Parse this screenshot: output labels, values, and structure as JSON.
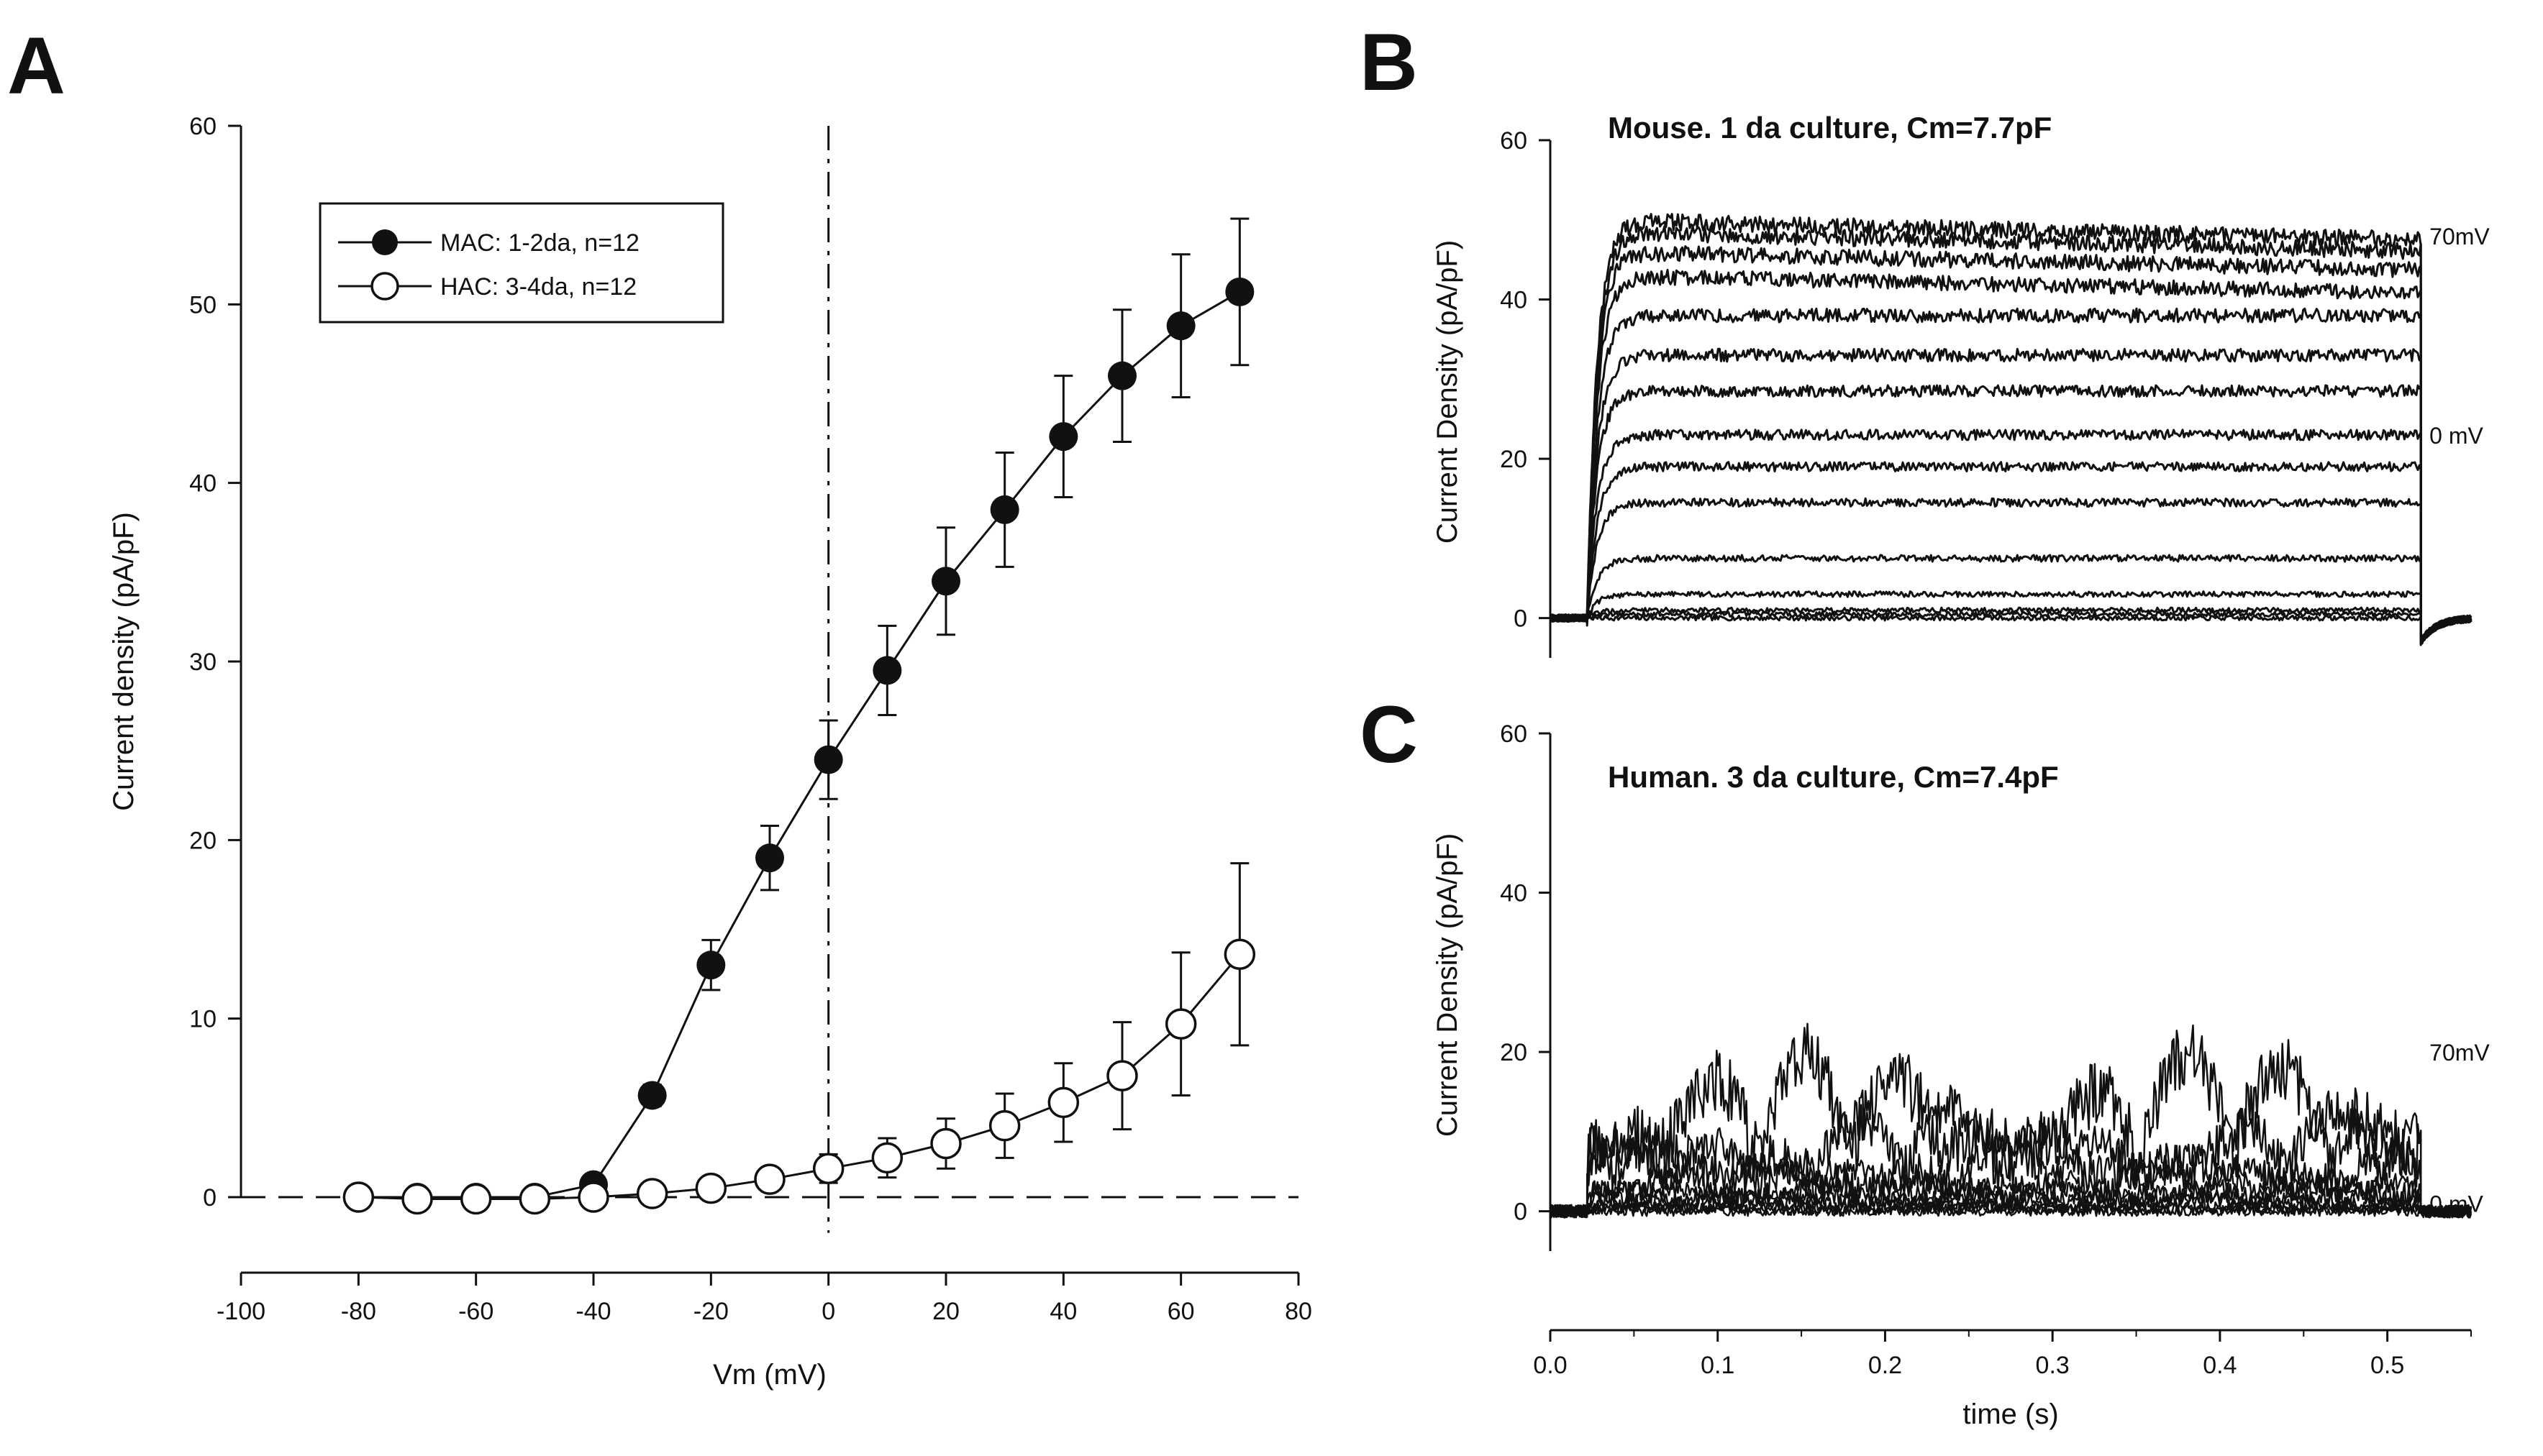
{
  "figure": {
    "panel_letters": [
      "A",
      "B",
      "C"
    ]
  },
  "chart_data": [
    {
      "panel": "A",
      "type": "line",
      "title": "",
      "xlabel": "Vm (mV)",
      "ylabel": "Current density (pA/pF)",
      "xlim": [
        -100,
        80
      ],
      "ylim": [
        0,
        60
      ],
      "xticks": [
        -100,
        -80,
        -60,
        -40,
        -20,
        0,
        20,
        40,
        60,
        80
      ],
      "yticks": [
        0,
        10,
        20,
        30,
        40,
        50,
        60
      ],
      "series": [
        {
          "name": "MAC: 1-2da, n=12",
          "marker": "filled-circle",
          "x": [
            -80,
            -70,
            -60,
            -50,
            -40,
            -30,
            -20,
            -10,
            0,
            10,
            20,
            30,
            40,
            50,
            60,
            70
          ],
          "y": [
            0,
            0,
            0,
            0,
            0.7,
            5.7,
            13.0,
            19.0,
            24.5,
            29.5,
            34.5,
            38.5,
            42.6,
            46.0,
            48.8,
            50.7
          ],
          "err": [
            0,
            0,
            0,
            0,
            0.3,
            0.6,
            1.4,
            1.8,
            2.2,
            2.5,
            3.0,
            3.2,
            3.4,
            3.7,
            4.0,
            4.1
          ]
        },
        {
          "name": "HAC: 3-4da, n=12",
          "marker": "open-circle",
          "x": [
            -80,
            -70,
            -60,
            -50,
            -40,
            -30,
            -20,
            -10,
            0,
            10,
            20,
            30,
            40,
            50,
            60,
            70
          ],
          "y": [
            0,
            -0.1,
            -0.1,
            -0.1,
            0,
            0.2,
            0.5,
            1.0,
            1.6,
            2.2,
            3.0,
            4.0,
            5.3,
            6.8,
            9.7,
            13.6
          ],
          "err": [
            0,
            0,
            0,
            0,
            0,
            0.2,
            0.3,
            0.5,
            0.8,
            1.1,
            1.4,
            1.8,
            2.2,
            3.0,
            4.0,
            5.1
          ]
        }
      ],
      "reference_lines": {
        "horizontal": 0,
        "vertical": 0
      }
    },
    {
      "panel": "B",
      "type": "line",
      "title": "Mouse. 1 da culture, Cm=7.7pF",
      "xlabel": "",
      "ylabel": "Current Density (pA/pF)",
      "xlim": [
        0,
        0.55
      ],
      "ylim": [
        -5,
        60
      ],
      "yticks": [
        0,
        20,
        40,
        60
      ],
      "step_onset_s": 0.022,
      "step_offset_s": 0.52,
      "trace_levels": [
        0,
        0.5,
        1,
        3,
        7.5,
        14.5,
        19,
        23,
        28.5,
        33,
        38,
        43,
        46,
        48.5,
        50
      ],
      "trace_labels": [
        {
          "text": "70mV",
          "level": 48
        },
        {
          "text": "0 mV",
          "level": 23
        }
      ]
    },
    {
      "panel": "C",
      "type": "line",
      "title": "Human. 3 da culture, Cm=7.4pF",
      "xlabel": "time (s)",
      "ylabel": "Current Density (pA/pF)",
      "xlim": [
        0,
        0.55
      ],
      "ylim": [
        -5,
        60
      ],
      "xticks": [
        0.0,
        0.1,
        0.2,
        0.3,
        0.4,
        0.5
      ],
      "xtick_labels": [
        "0.0",
        "0.1",
        "0.2",
        "0.3",
        "0.4",
        "0.5"
      ],
      "yticks": [
        0,
        20,
        40,
        60
      ],
      "step_onset_s": 0.022,
      "step_offset_s": 0.52,
      "trace_levels": [
        0,
        0.5,
        1,
        2,
        3,
        4,
        6,
        9,
        13,
        20
      ],
      "trace_labels": [
        {
          "text": "70mV",
          "level": 20
        },
        {
          "text": "0 mV",
          "level": 1
        }
      ]
    }
  ]
}
